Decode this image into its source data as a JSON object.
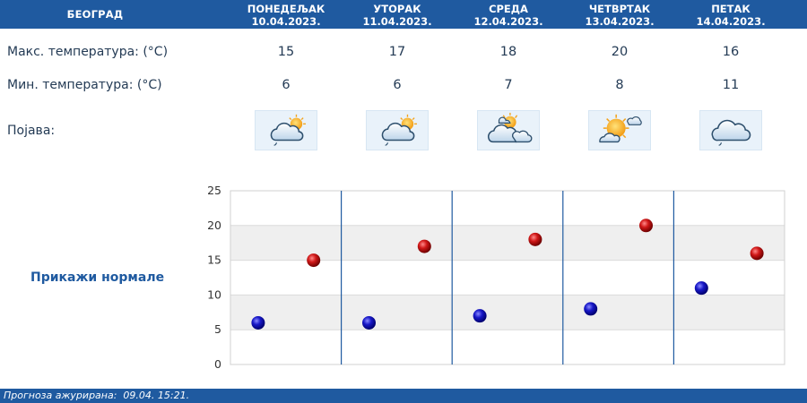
{
  "header": {
    "city": "БЕОГРАД"
  },
  "days": [
    {
      "name": "ПОНЕДЕЉАК",
      "date": "10.04.2023.",
      "max": "15",
      "min": "6",
      "icon": "partly-cloudy-light-rain-icon"
    },
    {
      "name": "УТОРАК",
      "date": "11.04.2023.",
      "max": "17",
      "min": "6",
      "icon": "partly-cloudy-light-rain-icon"
    },
    {
      "name": "СРЕДА",
      "date": "12.04.2023.",
      "max": "18",
      "min": "7",
      "icon": "partly-cloudy-icon"
    },
    {
      "name": "ЧЕТВРТАК",
      "date": "13.04.2023.",
      "max": "20",
      "min": "8",
      "icon": "mostly-sunny-icon"
    },
    {
      "name": "ПЕТАК",
      "date": "14.04.2023.",
      "max": "16",
      "min": "11",
      "icon": "cloudy-light-rain-icon"
    }
  ],
  "labels": {
    "max_temp": "Макс. температура: (°C)",
    "min_temp": "Мин. температура: (°C)",
    "phenomenon": "Појава:"
  },
  "normals_link": "Прикажи нормале",
  "footer": "Прогноза ажурирана:  09.04. 15:21.",
  "chart_data": {
    "type": "scatter",
    "categories": [
      "10.04.2023.",
      "11.04.2023.",
      "12.04.2023.",
      "13.04.2023.",
      "14.04.2023."
    ],
    "series": [
      {
        "values": [
          6,
          6,
          7,
          8,
          11
        ],
        "color": "#1a1aaa"
      },
      {
        "values": [
          15,
          17,
          18,
          20,
          16
        ],
        "color": "#c01010"
      }
    ],
    "ylim": [
      0,
      25
    ],
    "yticks": [
      "0",
      "5",
      "10",
      "15",
      "20",
      "25"
    ],
    "grid": true
  },
  "colors": {
    "accent": "#1f5aa0",
    "band": "#efefef"
  }
}
